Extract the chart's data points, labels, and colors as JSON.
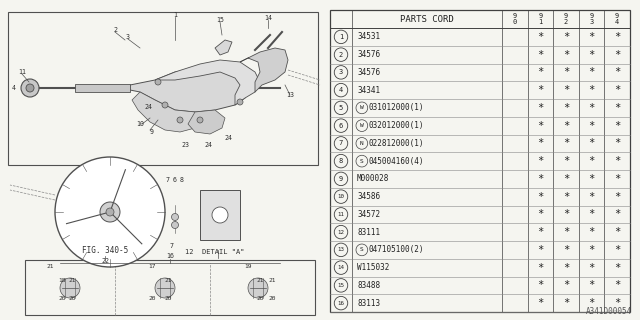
{
  "bg_color": "#f5f5f0",
  "part_code_label": "PARTS CORD",
  "watermark": "A341D00054",
  "year_cols": [
    "9\n0",
    "9\n1",
    "9\n2",
    "9\n3",
    "9\n4"
  ],
  "rows": [
    {
      "num": 1,
      "prefix": "",
      "code": "34531",
      "suffix": ""
    },
    {
      "num": 2,
      "prefix": "",
      "code": "34576",
      "suffix": ""
    },
    {
      "num": 3,
      "prefix": "",
      "code": "34576",
      "suffix": ""
    },
    {
      "num": 4,
      "prefix": "",
      "code": "34341",
      "suffix": ""
    },
    {
      "num": 5,
      "prefix": "W",
      "code": "031012000",
      "suffix": "(1)"
    },
    {
      "num": 6,
      "prefix": "W",
      "code": "032012000",
      "suffix": "(1)"
    },
    {
      "num": 7,
      "prefix": "N",
      "code": "022812000",
      "suffix": "(1)"
    },
    {
      "num": 8,
      "prefix": "S",
      "code": "045004160",
      "suffix": "(4)"
    },
    {
      "num": 9,
      "prefix": "",
      "code": "M000028",
      "suffix": ""
    },
    {
      "num": 10,
      "prefix": "",
      "code": "34586",
      "suffix": ""
    },
    {
      "num": 11,
      "prefix": "",
      "code": "34572",
      "suffix": ""
    },
    {
      "num": 12,
      "prefix": "",
      "code": "83111",
      "suffix": ""
    },
    {
      "num": 13,
      "prefix": "S",
      "code": "047105100",
      "suffix": "(2)"
    },
    {
      "num": 14,
      "prefix": "",
      "code": "W115032",
      "suffix": ""
    },
    {
      "num": 15,
      "prefix": "",
      "code": "83488",
      "suffix": ""
    },
    {
      "num": 16,
      "prefix": "",
      "code": "83113",
      "suffix": ""
    }
  ],
  "fig_label": "FIG. 340-5",
  "detail_label": "12  DETAIL \"A\""
}
